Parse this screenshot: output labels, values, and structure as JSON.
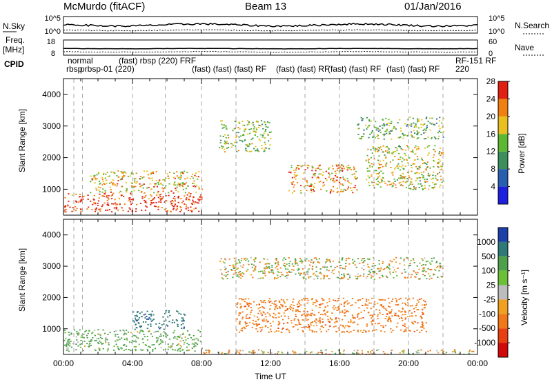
{
  "header": {
    "title_left": "McMurdo (fitACF)",
    "title_center": "Beam 13",
    "title_right": "01/Jan/2016"
  },
  "sky_panel": {
    "left_label": "N.Sky",
    "right_label": "N.Search",
    "left_ticks": [
      "10^5",
      "10^0"
    ],
    "right_ticks": [
      "10^5",
      "10^0"
    ]
  },
  "freq_panel": {
    "left_label_1": "Freq.",
    "left_label_2": "[MHz]",
    "right_label": "Nave",
    "left_ticks": [
      "18",
      "8"
    ],
    "right_ticks": [
      "60",
      "0"
    ]
  },
  "cpid": {
    "label": "CPID",
    "line1": "normal",
    "line2": "rbsp",
    "overlapping_labels": [
      "prbsp-01 (220)",
      "(fast) rbsp (220) FRF",
      "(fast) (fast) (fast) RF",
      "(fast) (fast) RF",
      "(fast) (fast) RF",
      "(fast) (fast) RF",
      "RF-151 RF"
    ],
    "end_line1": "RF-151 RF",
    "end_line2": "220"
  },
  "x_axis": {
    "label": "Time UT",
    "ticks": [
      "00:00",
      "04:00",
      "08:00",
      "12:00",
      "16:00",
      "20:00",
      "00:00"
    ]
  },
  "y_axis": {
    "label": "Slant Range [km]",
    "ticks": [
      "1000",
      "2000",
      "3000",
      "4000"
    ]
  },
  "power_bar": {
    "label": "Power [dB]",
    "ticks": [
      "4",
      "8",
      "12",
      "16",
      "20",
      "24",
      "28"
    ],
    "colors": [
      "#1f1fe0",
      "#2a5fb0",
      "#3a8f5a",
      "#5cb830",
      "#e8c020",
      "#f08010",
      "#e02010"
    ]
  },
  "velocity_bar": {
    "label": "Velocity [m s⁻¹]",
    "ticks": [
      "1000",
      "500",
      "100",
      "25",
      "-25",
      "-100",
      "-500",
      "-1000"
    ],
    "colors": [
      "#1c3fa8",
      "#2e7a78",
      "#4ea04a",
      "#6cc038",
      "#bcbcbc",
      "#f0a020",
      "#f07818",
      "#e84010",
      "#d00a0a"
    ]
  },
  "chart_data": [
    {
      "type": "heatmap",
      "title": "Power",
      "xlabel": "Time UT",
      "ylabel": "Slant Range [km]",
      "xlim_hours": [
        0,
        24
      ],
      "ylim_km": [
        180,
        4500
      ],
      "colorbar": {
        "label": "Power [dB]",
        "range": [
          0,
          30
        ]
      },
      "grid": "dashed vertical lines at CPID changes",
      "features": [
        {
          "time_hours": [
            0,
            8
          ],
          "range_km": [
            300,
            900
          ],
          "value_db": 28,
          "note": "strong near-range echoes"
        },
        {
          "time_hours": [
            1.5,
            8
          ],
          "range_km": [
            900,
            1600
          ],
          "value_db": 20
        },
        {
          "time_hours": [
            9,
            12
          ],
          "range_km": [
            2200,
            3200
          ],
          "value_db": 16
        },
        {
          "time_hours": [
            13,
            17
          ],
          "range_km": [
            900,
            1800
          ],
          "value_db": 22
        },
        {
          "time_hours": [
            17.5,
            22
          ],
          "range_km": [
            1000,
            2400
          ],
          "value_db": 18
        },
        {
          "time_hours": [
            17,
            22
          ],
          "range_km": [
            2600,
            3300
          ],
          "value_db": 14
        }
      ]
    },
    {
      "type": "heatmap",
      "title": "Velocity",
      "xlabel": "Time UT",
      "ylabel": "Slant Range [km]",
      "xlim_hours": [
        0,
        24
      ],
      "ylim_km": [
        180,
        4500
      ],
      "colorbar": {
        "label": "Velocity [m s⁻¹]",
        "range": [
          -1000,
          1000
        ]
      },
      "features": [
        {
          "time_hours": [
            0,
            8
          ],
          "range_km": [
            300,
            1000
          ],
          "value_ms": 200
        },
        {
          "time_hours": [
            4,
            7
          ],
          "range_km": [
            1000,
            1600
          ],
          "value_ms": 800
        },
        {
          "time_hours": [
            9,
            22
          ],
          "range_km": [
            2600,
            3300
          ],
          "value_ms": 0
        },
        {
          "time_hours": [
            10,
            21
          ],
          "range_km": [
            900,
            2000
          ],
          "value_ms": -300
        },
        {
          "time_hours": [
            8,
            24
          ],
          "range_km": [
            200,
            350
          ],
          "value_ms": -80
        }
      ]
    }
  ]
}
